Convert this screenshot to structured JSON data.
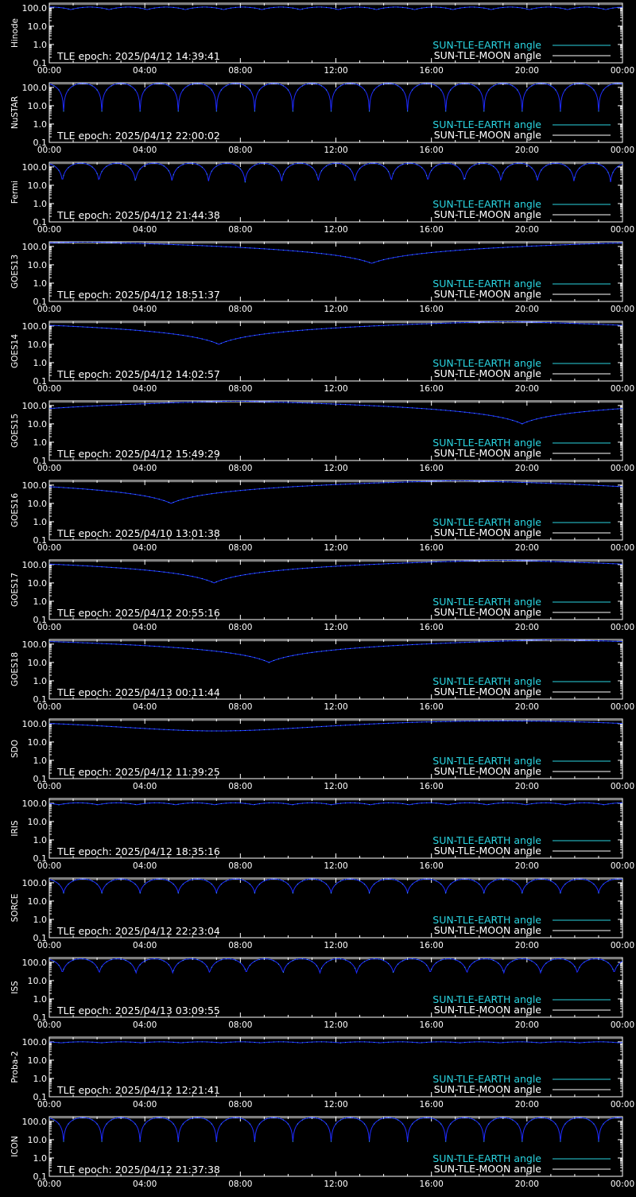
{
  "colors": {
    "background": "#000000",
    "axes": "#ffffff",
    "earth_line": "#1e2bff",
    "earth_points": "#40c8ff",
    "moon_line": "#ffffff",
    "legend_earth_text": "#2ad4e0",
    "legend_moon_text": "#ffffff"
  },
  "legend": {
    "earth_label": "SUN-TLE-EARTH angle",
    "moon_label": "SUN-TLE-MOON angle",
    "position": "bottom-right"
  },
  "chart_data": [
    {
      "type": "line",
      "ylabel": "Hinode",
      "x_ticks": [
        "00:00",
        "04:00",
        "08:00",
        "12:00",
        "16:00",
        "20:00",
        "00:00"
      ],
      "y_ticks": [
        "0.1",
        "1.0",
        "10.0",
        "100.0"
      ],
      "y_scale": "log",
      "ylim": [
        0.1,
        180
      ],
      "xlim_hours": [
        0,
        24
      ],
      "epoch_text": "TLE epoch: 2025/04/12 14:39:41",
      "pattern": "orbit",
      "period_hours": 1.6,
      "phase_hours": 0.9,
      "max_deg": 110,
      "min_deg": 80
    },
    {
      "type": "line",
      "ylabel": "NuSTAR",
      "x_ticks": [
        "00:00",
        "04:00",
        "08:00",
        "12:00",
        "16:00",
        "20:00",
        "00:00"
      ],
      "y_ticks": [
        "0.1",
        "1.0",
        "10.0",
        "100.0"
      ],
      "y_scale": "log",
      "ylim": [
        0.1,
        180
      ],
      "xlim_hours": [
        0,
        24
      ],
      "epoch_text": "TLE epoch: 2025/04/12 22:00:02",
      "pattern": "orbit",
      "period_hours": 1.6,
      "phase_hours": 0.6,
      "max_deg": 165,
      "min_deg": 5
    },
    {
      "type": "line",
      "ylabel": "Fermi",
      "x_ticks": [
        "00:00",
        "04:00",
        "08:00",
        "12:00",
        "16:00",
        "20:00",
        "00:00"
      ],
      "y_ticks": [
        "0.1",
        "1.0",
        "10.0",
        "100.0"
      ],
      "y_scale": "log",
      "ylim": [
        0.1,
        180
      ],
      "xlim_hours": [
        0,
        24
      ],
      "epoch_text": "TLE epoch: 2025/04/12 21:44:38",
      "pattern": "orbit",
      "period_hours": 1.53,
      "phase_hours": 0.55,
      "max_deg": 160,
      "min_deg": 15
    },
    {
      "type": "line",
      "ylabel": "GOES13",
      "x_ticks": [
        "00:00",
        "04:00",
        "08:00",
        "12:00",
        "16:00",
        "20:00",
        "00:00"
      ],
      "y_ticks": [
        "0.1",
        "1.0",
        "10.0",
        "100.0"
      ],
      "y_scale": "log",
      "ylim": [
        0.1,
        180
      ],
      "xlim_hours": [
        0,
        24
      ],
      "epoch_text": "TLE epoch: 2025/04/12 18:51:37",
      "pattern": "geo",
      "min_time_hours": 13.5,
      "min_deg": 12
    },
    {
      "type": "line",
      "ylabel": "GOES14",
      "x_ticks": [
        "00:00",
        "04:00",
        "08:00",
        "12:00",
        "16:00",
        "20:00",
        "00:00"
      ],
      "y_ticks": [
        "0.1",
        "1.0",
        "10.0",
        "100.0"
      ],
      "y_scale": "log",
      "ylim": [
        0.1,
        180
      ],
      "xlim_hours": [
        0,
        24
      ],
      "epoch_text": "TLE epoch: 2025/04/12 14:02:57",
      "pattern": "geo",
      "min_time_hours": 7.1,
      "min_deg": 10
    },
    {
      "type": "line",
      "ylabel": "GOES15",
      "x_ticks": [
        "00:00",
        "04:00",
        "08:00",
        "12:00",
        "16:00",
        "20:00",
        "00:00"
      ],
      "y_ticks": [
        "0.1",
        "1.0",
        "10.0",
        "100.0"
      ],
      "y_scale": "log",
      "ylim": [
        0.1,
        180
      ],
      "xlim_hours": [
        0,
        24
      ],
      "epoch_text": "TLE epoch: 2025/04/12 15:49:29",
      "pattern": "geo",
      "min_time_hours": 19.8,
      "min_deg": 10
    },
    {
      "type": "line",
      "ylabel": "GOES16",
      "x_ticks": [
        "00:00",
        "04:00",
        "08:00",
        "12:00",
        "16:00",
        "20:00",
        "00:00"
      ],
      "y_ticks": [
        "0.1",
        "1.0",
        "10.0",
        "100.0"
      ],
      "y_scale": "log",
      "ylim": [
        0.1,
        180
      ],
      "xlim_hours": [
        0,
        24
      ],
      "epoch_text": "TLE epoch: 2025/04/10 13:01:38",
      "pattern": "geo",
      "min_time_hours": 5.1,
      "min_deg": 10
    },
    {
      "type": "line",
      "ylabel": "GOES17",
      "x_ticks": [
        "00:00",
        "04:00",
        "08:00",
        "12:00",
        "16:00",
        "20:00",
        "00:00"
      ],
      "y_ticks": [
        "0.1",
        "1.0",
        "10.0",
        "100.0"
      ],
      "y_scale": "log",
      "ylim": [
        0.1,
        180
      ],
      "xlim_hours": [
        0,
        24
      ],
      "epoch_text": "TLE epoch: 2025/04/12 20:55:16",
      "pattern": "geo",
      "min_time_hours": 6.9,
      "min_deg": 10
    },
    {
      "type": "line",
      "ylabel": "GOES18",
      "x_ticks": [
        "00:00",
        "04:00",
        "08:00",
        "12:00",
        "16:00",
        "20:00",
        "00:00"
      ],
      "y_ticks": [
        "0.1",
        "1.0",
        "10.0",
        "100.0"
      ],
      "y_scale": "log",
      "ylim": [
        0.1,
        180
      ],
      "xlim_hours": [
        0,
        24
      ],
      "epoch_text": "TLE epoch: 2025/04/13 00:11:44",
      "pattern": "geo",
      "min_time_hours": 9.2,
      "min_deg": 10
    },
    {
      "type": "line",
      "ylabel": "SDO",
      "x_ticks": [
        "00:00",
        "04:00",
        "08:00",
        "12:00",
        "16:00",
        "20:00",
        "00:00"
      ],
      "y_ticks": [
        "0.1",
        "1.0",
        "10.0",
        "100.0"
      ],
      "y_scale": "log",
      "ylim": [
        0.1,
        180
      ],
      "xlim_hours": [
        0,
        24
      ],
      "epoch_text": "TLE epoch: 2025/04/12 11:39:25",
      "pattern": "sdo",
      "min_time_hours": 7.0,
      "min_deg": 40
    },
    {
      "type": "line",
      "ylabel": "IRIS",
      "x_ticks": [
        "00:00",
        "04:00",
        "08:00",
        "12:00",
        "16:00",
        "20:00",
        "00:00"
      ],
      "y_ticks": [
        "0.1",
        "1.0",
        "10.0",
        "100.0"
      ],
      "y_scale": "log",
      "ylim": [
        0.1,
        180
      ],
      "xlim_hours": [
        0,
        24
      ],
      "epoch_text": "TLE epoch: 2025/04/12 18:35:16",
      "pattern": "orbit",
      "period_hours": 1.63,
      "phase_hours": 0.4,
      "max_deg": 105,
      "min_deg": 82
    },
    {
      "type": "line",
      "ylabel": "SORCE",
      "x_ticks": [
        "00:00",
        "04:00",
        "08:00",
        "12:00",
        "16:00",
        "20:00",
        "00:00"
      ],
      "y_ticks": [
        "0.1",
        "1.0",
        "10.0",
        "100.0"
      ],
      "y_scale": "log",
      "ylim": [
        0.1,
        180
      ],
      "xlim_hours": [
        0,
        24
      ],
      "epoch_text": "TLE epoch: 2025/04/12 22:23:04",
      "pattern": "orbit",
      "period_hours": 1.6,
      "phase_hours": 0.6,
      "max_deg": 160,
      "min_deg": 28
    },
    {
      "type": "line",
      "ylabel": "ISS",
      "x_ticks": [
        "00:00",
        "04:00",
        "08:00",
        "12:00",
        "16:00",
        "20:00",
        "00:00"
      ],
      "y_ticks": [
        "0.1",
        "1.0",
        "10.0",
        "100.0"
      ],
      "y_scale": "log",
      "ylim": [
        0.1,
        180
      ],
      "xlim_hours": [
        0,
        24
      ],
      "epoch_text": "TLE epoch: 2025/04/13 03:09:55",
      "pattern": "orbit",
      "period_hours": 1.54,
      "phase_hours": 0.55,
      "max_deg": 155,
      "min_deg": 25
    },
    {
      "type": "line",
      "ylabel": "Proba-2",
      "x_ticks": [
        "00:00",
        "04:00",
        "08:00",
        "12:00",
        "16:00",
        "20:00",
        "00:00"
      ],
      "y_ticks": [
        "0.1",
        "1.0",
        "10.0",
        "100.0"
      ],
      "y_scale": "log",
      "ylim": [
        0.1,
        180
      ],
      "xlim_hours": [
        0,
        24
      ],
      "epoch_text": "TLE epoch: 2025/04/12 12:21:41",
      "pattern": "orbit",
      "period_hours": 1.67,
      "phase_hours": 0.5,
      "max_deg": 100,
      "min_deg": 88
    },
    {
      "type": "line",
      "ylabel": "ICON",
      "x_ticks": [
        "00:00",
        "04:00",
        "08:00",
        "12:00",
        "16:00",
        "20:00",
        "00:00"
      ],
      "y_ticks": [
        "0.1",
        "1.0",
        "10.0",
        "100.0"
      ],
      "y_scale": "log",
      "ylim": [
        0.1,
        180
      ],
      "xlim_hours": [
        0,
        24
      ],
      "epoch_text": "TLE epoch: 2025/04/12 21:37:38",
      "pattern": "orbit",
      "period_hours": 1.6,
      "phase_hours": 0.6,
      "max_deg": 160,
      "min_deg": 8
    }
  ]
}
